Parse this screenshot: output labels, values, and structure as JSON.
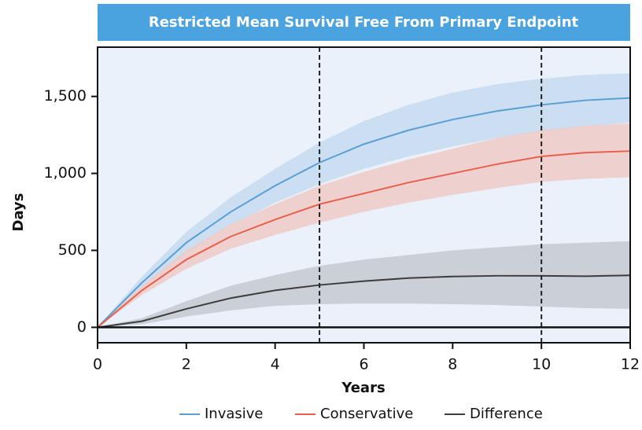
{
  "chart_data": {
    "type": "line",
    "title": "Restricted Mean Survival Free From Primary Endpoint",
    "x_label": "Years",
    "y_label": "Days",
    "x": [
      0,
      1,
      2,
      3,
      4,
      5,
      6,
      7,
      8,
      9,
      10,
      11,
      12
    ],
    "series": [
      {
        "name": "Invasive",
        "color": "#5b9fd4",
        "band_color": "#c5daf0",
        "values": [
          0,
          290,
          550,
          750,
          920,
          1070,
          1190,
          1280,
          1350,
          1405,
          1445,
          1475,
          1490
        ],
        "lower": [
          0,
          250,
          480,
          660,
          810,
          930,
          1030,
          1110,
          1175,
          1230,
          1270,
          1305,
          1330
        ],
        "upper": [
          0,
          330,
          620,
          845,
          1030,
          1200,
          1340,
          1445,
          1525,
          1580,
          1615,
          1640,
          1650
        ]
      },
      {
        "name": "Conservative",
        "color": "#e8604c",
        "band_color": "#eecbc6",
        "values": [
          0,
          240,
          440,
          590,
          700,
          800,
          870,
          940,
          1000,
          1060,
          1110,
          1135,
          1145
        ],
        "lower": [
          0,
          210,
          380,
          510,
          600,
          680,
          750,
          810,
          860,
          905,
          945,
          965,
          975
        ],
        "upper": [
          0,
          270,
          500,
          670,
          800,
          920,
          1010,
          1090,
          1160,
          1230,
          1280,
          1310,
          1325
        ]
      },
      {
        "name": "Difference",
        "color": "#3d3d3d",
        "band_color": "#c6c9d0",
        "values": [
          0,
          40,
          120,
          190,
          240,
          275,
          300,
          320,
          330,
          335,
          335,
          332,
          338
        ],
        "lower": [
          0,
          20,
          70,
          110,
          140,
          150,
          155,
          155,
          150,
          145,
          135,
          125,
          120
        ],
        "upper": [
          0,
          60,
          170,
          270,
          340,
          400,
          440,
          470,
          500,
          520,
          540,
          550,
          560
        ]
      }
    ],
    "vlines": [
      5,
      10
    ],
    "xlim": [
      0,
      12
    ],
    "xticks": [
      0,
      2,
      4,
      6,
      8,
      10,
      12
    ],
    "ylim": [
      -100,
      1820
    ],
    "yticks": [
      0,
      500,
      {
        "value": 1000,
        "label": "1,000"
      },
      {
        "value": 1500,
        "label": "1,500"
      }
    ]
  }
}
